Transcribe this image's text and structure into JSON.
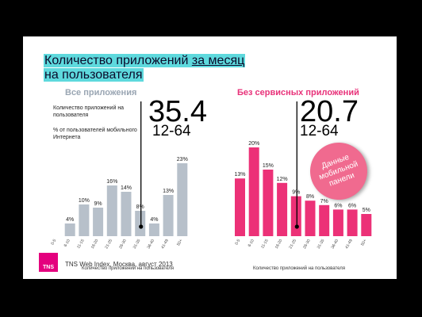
{
  "slide": {
    "title_part1": "Количество приложений ",
    "title_part2": "за месяц",
    "title_line2": "на пользователя",
    "left_subtitle": "Все приложения",
    "right_subtitle": "Без сервисных приложений",
    "note_line1": "Количество приложений на пользователя",
    "note_line2": "% от пользователей мобильного Интернета",
    "left_big": "35.4",
    "left_range": "12-64",
    "right_big": "20.7",
    "right_range": "12-64",
    "badge": "Данные мобильной панели",
    "logo": "TNS",
    "source": "TNS Web Index, Москва, август 2013",
    "colors": {
      "left_bars": "#b7c0ca",
      "right_bars": "#ec3177",
      "title_highlight": "#5ed9dd",
      "badge": "#f06a8f",
      "logo": "#e4007e"
    }
  },
  "chart_data": [
    {
      "type": "bar",
      "title": "Все приложения",
      "xlabel": "Количество приложений на пользователя",
      "categories": [
        "0-5",
        "6-10",
        "11-15",
        "16-20",
        "21-25",
        "26-30",
        "31-35",
        "36-40",
        "41-49",
        "50+"
      ],
      "values": [
        0,
        4,
        10,
        9,
        16,
        14,
        8,
        4,
        13,
        23
      ],
      "labels": [
        "",
        "4%",
        "10%",
        "9%",
        "16%",
        "14%",
        "8%",
        "4%",
        "13%",
        "23%"
      ],
      "ylim": [
        0,
        23
      ],
      "marker": {
        "category": "31-35",
        "value": "35.4"
      }
    },
    {
      "type": "bar",
      "title": "Без сервисных приложений",
      "xlabel": "Количество приложений на пользователя",
      "categories": [
        "0-5",
        "6-10",
        "11-15",
        "16-20",
        "21-25",
        "26-30",
        "31-35",
        "36-40",
        "41-49",
        "50+"
      ],
      "values": [
        13,
        20,
        15,
        12,
        9,
        8,
        7,
        6,
        6,
        5
      ],
      "labels": [
        "13%",
        "20%",
        "15%",
        "12%",
        "9%",
        "8%",
        "7%",
        "6%",
        "6%",
        "5%"
      ],
      "ylim": [
        0,
        20
      ],
      "marker": {
        "category": "21-25",
        "value": "20.7"
      }
    }
  ]
}
